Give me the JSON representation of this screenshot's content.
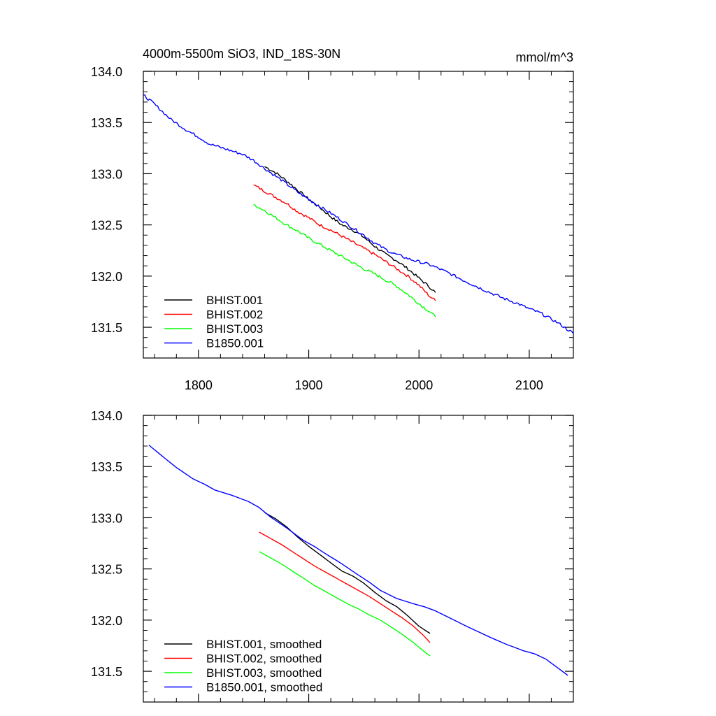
{
  "chart_data": [
    {
      "type": "line",
      "title": "4000m-5500m SiO3, IND_18S-30N",
      "units": "mmol/m^3",
      "xlim": [
        1750,
        2140
      ],
      "ylim": [
        131.2,
        134.0
      ],
      "x_ticks": [
        1800,
        1900,
        2000,
        2100
      ],
      "y_ticks": [
        131.5,
        132.0,
        132.5,
        133.0,
        133.5,
        134.0
      ],
      "y_tick_labels": [
        "131.5",
        "132.0",
        "132.5",
        "133.0",
        "133.5",
        "134.0"
      ],
      "x_tick_labels": [
        "1800",
        "1900",
        "2000",
        "2100"
      ],
      "legend": "lower-left",
      "series": [
        {
          "name": "BHIST.001",
          "color": "#000000",
          "noise": 0.02,
          "x": [
            1860,
            1870,
            1880,
            1890,
            1900,
            1910,
            1920,
            1930,
            1940,
            1950,
            1960,
            1970,
            1980,
            1990,
            2000,
            2010,
            2015
          ],
          "y": [
            133.07,
            133.01,
            132.93,
            132.84,
            132.75,
            132.67,
            132.58,
            132.5,
            132.45,
            132.38,
            132.29,
            132.21,
            132.15,
            132.07,
            131.98,
            131.89,
            131.84
          ]
        },
        {
          "name": "BHIST.002",
          "color": "#ff0000",
          "noise": 0.02,
          "x": [
            1850,
            1860,
            1870,
            1880,
            1890,
            1900,
            1910,
            1920,
            1930,
            1940,
            1950,
            1960,
            1970,
            1980,
            1990,
            2000,
            2010,
            2015
          ],
          "y": [
            132.89,
            132.83,
            132.77,
            132.71,
            132.63,
            132.57,
            132.5,
            132.45,
            132.39,
            132.33,
            132.27,
            132.21,
            132.14,
            132.07,
            132.0,
            131.91,
            131.8,
            131.76
          ]
        },
        {
          "name": "BHIST.003",
          "color": "#00ff00",
          "noise": 0.02,
          "x": [
            1850,
            1860,
            1870,
            1880,
            1890,
            1900,
            1910,
            1920,
            1930,
            1940,
            1950,
            1960,
            1970,
            1980,
            1990,
            2000,
            2010,
            2015
          ],
          "y": [
            132.7,
            132.64,
            132.57,
            132.5,
            132.44,
            132.37,
            132.31,
            132.25,
            132.19,
            132.13,
            132.07,
            132.02,
            131.96,
            131.9,
            131.82,
            131.73,
            131.65,
            131.6
          ]
        },
        {
          "name": "B1850.001",
          "color": "#0000ff",
          "noise": 0.02,
          "x": [
            1750,
            1760,
            1775,
            1790,
            1800,
            1810,
            1825,
            1840,
            1850,
            1860,
            1875,
            1890,
            1900,
            1910,
            1925,
            1940,
            1950,
            1960,
            1975,
            1990,
            2000,
            2010,
            2025,
            2040,
            2050,
            2060,
            2075,
            2090,
            2100,
            2110,
            2125,
            2140
          ],
          "y": [
            133.77,
            133.68,
            133.53,
            133.42,
            133.36,
            133.29,
            133.24,
            133.19,
            133.13,
            133.05,
            132.94,
            132.82,
            132.75,
            132.68,
            132.58,
            132.47,
            132.4,
            132.32,
            132.23,
            132.17,
            132.14,
            132.11,
            132.04,
            131.96,
            131.91,
            131.86,
            131.79,
            131.73,
            131.68,
            131.64,
            131.55,
            131.44
          ]
        }
      ]
    },
    {
      "type": "line",
      "xlim": [
        1750,
        2140
      ],
      "ylim": [
        131.2,
        134.0
      ],
      "x_ticks": [
        1800,
        1900,
        2000,
        2100
      ],
      "y_ticks": [
        131.5,
        132.0,
        132.5,
        133.0,
        133.5,
        134.0
      ],
      "y_tick_labels": [
        "131.5",
        "132.0",
        "132.5",
        "133.0",
        "133.5",
        "134.0"
      ],
      "legend": "lower-left",
      "series": [
        {
          "name": "BHIST.001, smoothed",
          "color": "#000000",
          "noise": 0,
          "x": [
            1860,
            1870,
            1880,
            1890,
            1900,
            1910,
            1920,
            1930,
            1940,
            1950,
            1960,
            1970,
            1980,
            1990,
            2000,
            2010
          ],
          "y": [
            133.05,
            132.99,
            132.91,
            132.81,
            132.72,
            132.64,
            132.56,
            132.48,
            132.43,
            132.36,
            132.27,
            132.19,
            132.13,
            132.04,
            131.94,
            131.87
          ]
        },
        {
          "name": "BHIST.002, smoothed",
          "color": "#ff0000",
          "noise": 0,
          "x": [
            1855,
            1865,
            1875,
            1885,
            1895,
            1905,
            1915,
            1925,
            1935,
            1945,
            1955,
            1965,
            1975,
            1985,
            1995,
            2005,
            2010
          ],
          "y": [
            132.86,
            132.8,
            132.74,
            132.67,
            132.6,
            132.53,
            132.47,
            132.41,
            132.35,
            132.29,
            132.23,
            132.16,
            132.09,
            132.02,
            131.94,
            131.84,
            131.78
          ]
        },
        {
          "name": "BHIST.003, smoothed",
          "color": "#00ff00",
          "noise": 0,
          "x": [
            1855,
            1865,
            1875,
            1885,
            1895,
            1905,
            1915,
            1925,
            1935,
            1945,
            1955,
            1965,
            1975,
            1985,
            1995,
            2005,
            2010
          ],
          "y": [
            132.67,
            132.61,
            132.55,
            132.48,
            132.41,
            132.34,
            132.28,
            132.22,
            132.16,
            132.11,
            132.05,
            132.0,
            131.93,
            131.86,
            131.78,
            131.69,
            131.65
          ]
        },
        {
          "name": "B1850.001, smoothed",
          "color": "#0000ff",
          "noise": 0,
          "x": [
            1755,
            1765,
            1780,
            1795,
            1805,
            1815,
            1830,
            1845,
            1855,
            1865,
            1880,
            1895,
            1905,
            1915,
            1930,
            1945,
            1955,
            1965,
            1980,
            1995,
            2005,
            2015,
            2030,
            2045,
            2055,
            2065,
            2080,
            2095,
            2105,
            2115,
            2125,
            2135
          ],
          "y": [
            133.71,
            133.62,
            133.49,
            133.38,
            133.33,
            133.27,
            133.22,
            133.16,
            133.1,
            133.01,
            132.9,
            132.78,
            132.72,
            132.65,
            132.55,
            132.44,
            132.37,
            132.29,
            132.21,
            132.16,
            132.13,
            132.09,
            132.01,
            131.93,
            131.88,
            131.83,
            131.76,
            131.7,
            131.67,
            131.62,
            131.54,
            131.46
          ]
        }
      ]
    }
  ]
}
